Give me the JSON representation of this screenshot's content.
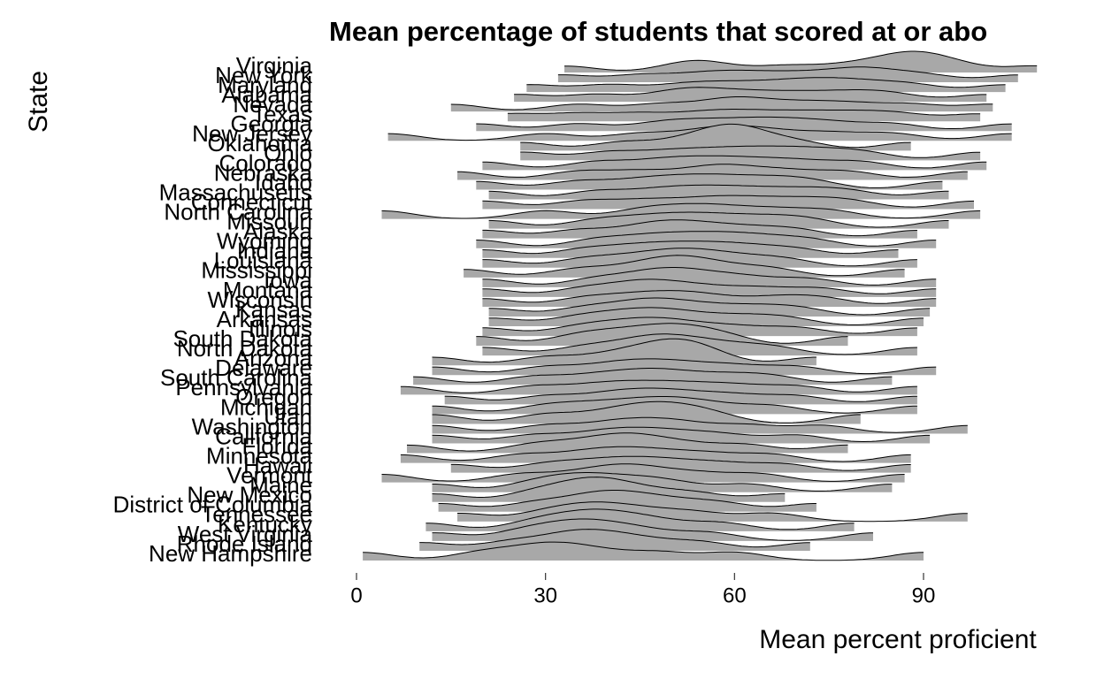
{
  "chart_data": {
    "type": "ridgeline",
    "title": "Mean percentage of students that scored at or abo",
    "xlabel": "Mean percent proficient",
    "ylabel": "State",
    "xlim": [
      -5,
      118
    ],
    "xticks": [
      0,
      30,
      60,
      90
    ],
    "fill": "#a8a8a8",
    "line_color": "#000000",
    "series": [
      {
        "name": "Virginia",
        "values": [
          33,
          52,
          56,
          68,
          78,
          85,
          88,
          90,
          95,
          108
        ]
      },
      {
        "name": "New York",
        "values": [
          32,
          45,
          55,
          62,
          70,
          78,
          82,
          90,
          105
        ]
      },
      {
        "name": "Maryland",
        "values": [
          27,
          40,
          52,
          60,
          68,
          74,
          80,
          88,
          103
        ]
      },
      {
        "name": "Alabama",
        "values": [
          25,
          38,
          50,
          55,
          62,
          70,
          78,
          85,
          100
        ]
      },
      {
        "name": "Nevada",
        "values": [
          15,
          35,
          48,
          58,
          62,
          70,
          78,
          88,
          101
        ]
      },
      {
        "name": "Texas",
        "values": [
          24,
          35,
          45,
          55,
          62,
          70,
          78,
          86,
          99
        ]
      },
      {
        "name": "Georgia",
        "values": [
          19,
          35,
          48,
          55,
          62,
          68,
          75,
          85,
          104
        ]
      },
      {
        "name": "New Jersey",
        "values": [
          5,
          30,
          45,
          55,
          60,
          66,
          75,
          85,
          104
        ]
      },
      {
        "name": "Oklahoma",
        "values": [
          26,
          42,
          52,
          58,
          60,
          62,
          70,
          88
        ]
      },
      {
        "name": "Ohio",
        "values": [
          26,
          40,
          50,
          58,
          65,
          72,
          80,
          99
        ]
      },
      {
        "name": "Colorado",
        "values": [
          20,
          38,
          48,
          55,
          62,
          70,
          80,
          100
        ]
      },
      {
        "name": "Nebraska",
        "values": [
          16,
          35,
          45,
          55,
          60,
          68,
          78,
          97
        ]
      },
      {
        "name": "Idaho",
        "values": [
          19,
          35,
          45,
          52,
          58,
          65,
          72,
          93
        ]
      },
      {
        "name": "Massachusetts",
        "values": [
          21,
          38,
          48,
          55,
          62,
          70,
          78,
          94
        ]
      },
      {
        "name": "Connecticut",
        "values": [
          20,
          36,
          46,
          55,
          62,
          70,
          78,
          98
        ]
      },
      {
        "name": "North Carolina",
        "values": [
          4,
          30,
          45,
          52,
          58,
          66,
          75,
          99
        ]
      },
      {
        "name": "Missouri",
        "values": [
          21,
          38,
          46,
          52,
          58,
          65,
          72,
          94
        ]
      },
      {
        "name": "Alaska",
        "values": [
          20,
          35,
          45,
          50,
          55,
          62,
          70,
          89
        ]
      },
      {
        "name": "Wyoming",
        "values": [
          19,
          38,
          46,
          52,
          58,
          64,
          72,
          92
        ]
      },
      {
        "name": "Indiana",
        "values": [
          20,
          36,
          44,
          50,
          56,
          62,
          70,
          86
        ]
      },
      {
        "name": "Louisiana",
        "values": [
          20,
          36,
          44,
          50,
          54,
          60,
          68,
          89
        ]
      },
      {
        "name": "Mississippi",
        "values": [
          17,
          35,
          44,
          50,
          52,
          58,
          66,
          87
        ]
      },
      {
        "name": "Iowa",
        "values": [
          20,
          38,
          46,
          50,
          55,
          62,
          72,
          92
        ]
      },
      {
        "name": "Montana",
        "values": [
          20,
          36,
          44,
          48,
          55,
          64,
          74,
          92
        ]
      },
      {
        "name": "Wisconsin",
        "values": [
          20,
          36,
          44,
          50,
          56,
          66,
          74,
          92
        ]
      },
      {
        "name": "Kansas",
        "values": [
          21,
          36,
          44,
          48,
          54,
          62,
          70,
          91
        ]
      },
      {
        "name": "Arkansas",
        "values": [
          21,
          35,
          42,
          47,
          52,
          60,
          68,
          90
        ]
      },
      {
        "name": "Illinois",
        "values": [
          20,
          35,
          42,
          47,
          52,
          60,
          70,
          89
        ]
      },
      {
        "name": "South Dakota",
        "values": [
          19,
          35,
          42,
          48,
          52,
          58,
          78
        ]
      },
      {
        "name": "North Dakota",
        "values": [
          20,
          36,
          44,
          48,
          52,
          58,
          66,
          89
        ]
      },
      {
        "name": "Arizona",
        "values": [
          12,
          30,
          40,
          46,
          50,
          52,
          56,
          73
        ]
      },
      {
        "name": "Delaware",
        "values": [
          12,
          30,
          40,
          46,
          52,
          60,
          70,
          92
        ]
      },
      {
        "name": "South Carolina",
        "values": [
          9,
          28,
          38,
          45,
          50,
          58,
          66,
          85
        ]
      },
      {
        "name": "Pennsylvania",
        "values": [
          7,
          28,
          38,
          45,
          52,
          60,
          70,
          89
        ]
      },
      {
        "name": "Oregon",
        "values": [
          14,
          30,
          40,
          46,
          52,
          60,
          70,
          89
        ]
      },
      {
        "name": "Michigan",
        "values": [
          12,
          30,
          38,
          45,
          50,
          56,
          66,
          89
        ]
      },
      {
        "name": "Utah",
        "values": [
          12,
          30,
          40,
          46,
          50,
          56,
          80
        ]
      },
      {
        "name": "Washington",
        "values": [
          12,
          30,
          40,
          46,
          52,
          62,
          74,
          97
        ]
      },
      {
        "name": "California",
        "values": [
          12,
          28,
          38,
          44,
          50,
          58,
          70,
          91
        ]
      },
      {
        "name": "Florida",
        "values": [
          8,
          28,
          36,
          42,
          45,
          52,
          62,
          78
        ]
      },
      {
        "name": "Minnesota",
        "values": [
          7,
          26,
          36,
          42,
          48,
          56,
          66,
          88
        ]
      },
      {
        "name": "Hawaii",
        "values": [
          15,
          30,
          38,
          44,
          50,
          58,
          68,
          88
        ]
      },
      {
        "name": "Vermont",
        "values": [
          4,
          26,
          36,
          42,
          46,
          54,
          64,
          87
        ]
      },
      {
        "name": "Maine",
        "values": [
          12,
          28,
          34,
          38,
          44,
          50,
          62,
          85
        ]
      },
      {
        "name": "New Mexico",
        "values": [
          12,
          28,
          34,
          38,
          40,
          46,
          54,
          68
        ]
      },
      {
        "name": "District of Columbia",
        "values": [
          13,
          28,
          36,
          40,
          44,
          50,
          58,
          73
        ]
      },
      {
        "name": "Tennessee",
        "values": [
          16,
          30,
          36,
          40,
          46,
          54,
          66,
          97
        ]
      },
      {
        "name": "Kentucky",
        "values": [
          11,
          28,
          34,
          38,
          42,
          48,
          58,
          79
        ]
      },
      {
        "name": "West Virginia",
        "values": [
          12,
          26,
          32,
          36,
          40,
          46,
          56,
          82
        ]
      },
      {
        "name": "Rhode Island",
        "values": [
          10,
          24,
          32,
          36,
          40,
          46,
          55,
          72
        ]
      },
      {
        "name": "New Hampshire",
        "values": [
          1,
          20,
          28,
          32,
          38,
          48,
          60,
          90
        ]
      }
    ]
  }
}
